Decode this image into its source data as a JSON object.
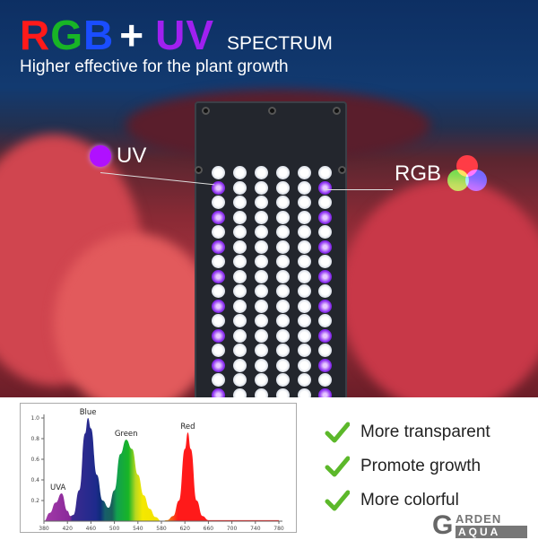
{
  "header": {
    "title_parts": [
      {
        "text": "RGB",
        "colors": [
          "#ff1a1a",
          "#18b526",
          "#1a4dff"
        ]
      },
      {
        "text": "+",
        "color": "#ffffff"
      },
      {
        "text": "UV",
        "color": "#a020f0"
      }
    ],
    "title_suffix": "SPECTRUM",
    "subtitle": "Higher effective for the plant growth"
  },
  "callouts": {
    "uv": "UV",
    "rgb": "RGB"
  },
  "features": [
    {
      "icon": "check-icon",
      "label": "More transparent"
    },
    {
      "icon": "check-icon",
      "label": "Promote growth"
    },
    {
      "icon": "check-icon",
      "label": "More colorful"
    }
  ],
  "logo": {
    "line1": "GARDEN",
    "line2": "AQUA"
  },
  "colors": {
    "check": "#5cb82a",
    "uv": "#a020f0",
    "red": "#ff1a1a",
    "green": "#18b526",
    "blue": "#1a4dff"
  },
  "chart_data": {
    "type": "area",
    "title": "",
    "xlabel": "",
    "ylabel": "",
    "xlim": [
      380,
      780
    ],
    "ylim": [
      0,
      1.0
    ],
    "xticks": [
      380,
      420,
      460,
      500,
      540,
      580,
      620,
      660,
      700,
      740,
      780
    ],
    "yticks": [
      0.2,
      0.4,
      0.6,
      0.8,
      1.0
    ],
    "annotations": [
      {
        "text": "UVA",
        "x": 410,
        "y": 0.27
      },
      {
        "text": "Blue",
        "x": 455,
        "y": 1.0
      },
      {
        "text": "Green",
        "x": 520,
        "y": 0.79
      },
      {
        "text": "Red",
        "x": 625,
        "y": 0.86
      }
    ],
    "x": [
      380,
      390,
      400,
      410,
      420,
      425,
      430,
      440,
      450,
      455,
      460,
      470,
      480,
      490,
      500,
      510,
      520,
      530,
      540,
      550,
      560,
      570,
      580,
      590,
      600,
      610,
      620,
      625,
      630,
      640,
      650,
      660,
      700,
      780
    ],
    "y": [
      0,
      0.08,
      0.18,
      0.27,
      0.1,
      0.05,
      0.06,
      0.3,
      0.85,
      1.0,
      0.9,
      0.45,
      0.2,
      0.13,
      0.3,
      0.65,
      0.79,
      0.7,
      0.45,
      0.25,
      0.12,
      0.04,
      0.0,
      0.01,
      0.05,
      0.2,
      0.7,
      0.86,
      0.7,
      0.2,
      0.05,
      0.01,
      0.01,
      0.01
    ],
    "grid": false
  }
}
